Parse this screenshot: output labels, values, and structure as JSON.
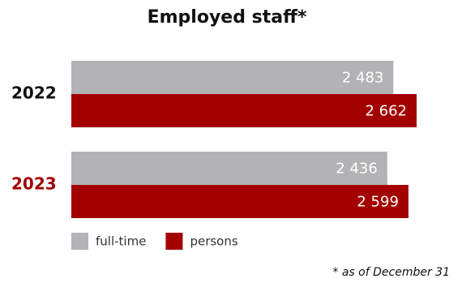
{
  "chart_data": {
    "type": "hbar",
    "title": "Employed staff*",
    "categories": [
      "2022",
      "2023"
    ],
    "category_colors": [
      "#111111",
      "#a30000"
    ],
    "series": [
      {
        "name": "full-time",
        "color": "#b3b3b5",
        "values": [
          2483,
          2436
        ],
        "value_labels": [
          "2 483",
          "2 436"
        ]
      },
      {
        "name": "persons",
        "color": "#a30000",
        "values": [
          2662,
          2599
        ],
        "value_labels": [
          "2 662",
          "2 599"
        ]
      }
    ],
    "footnote": "* as of December 31"
  }
}
